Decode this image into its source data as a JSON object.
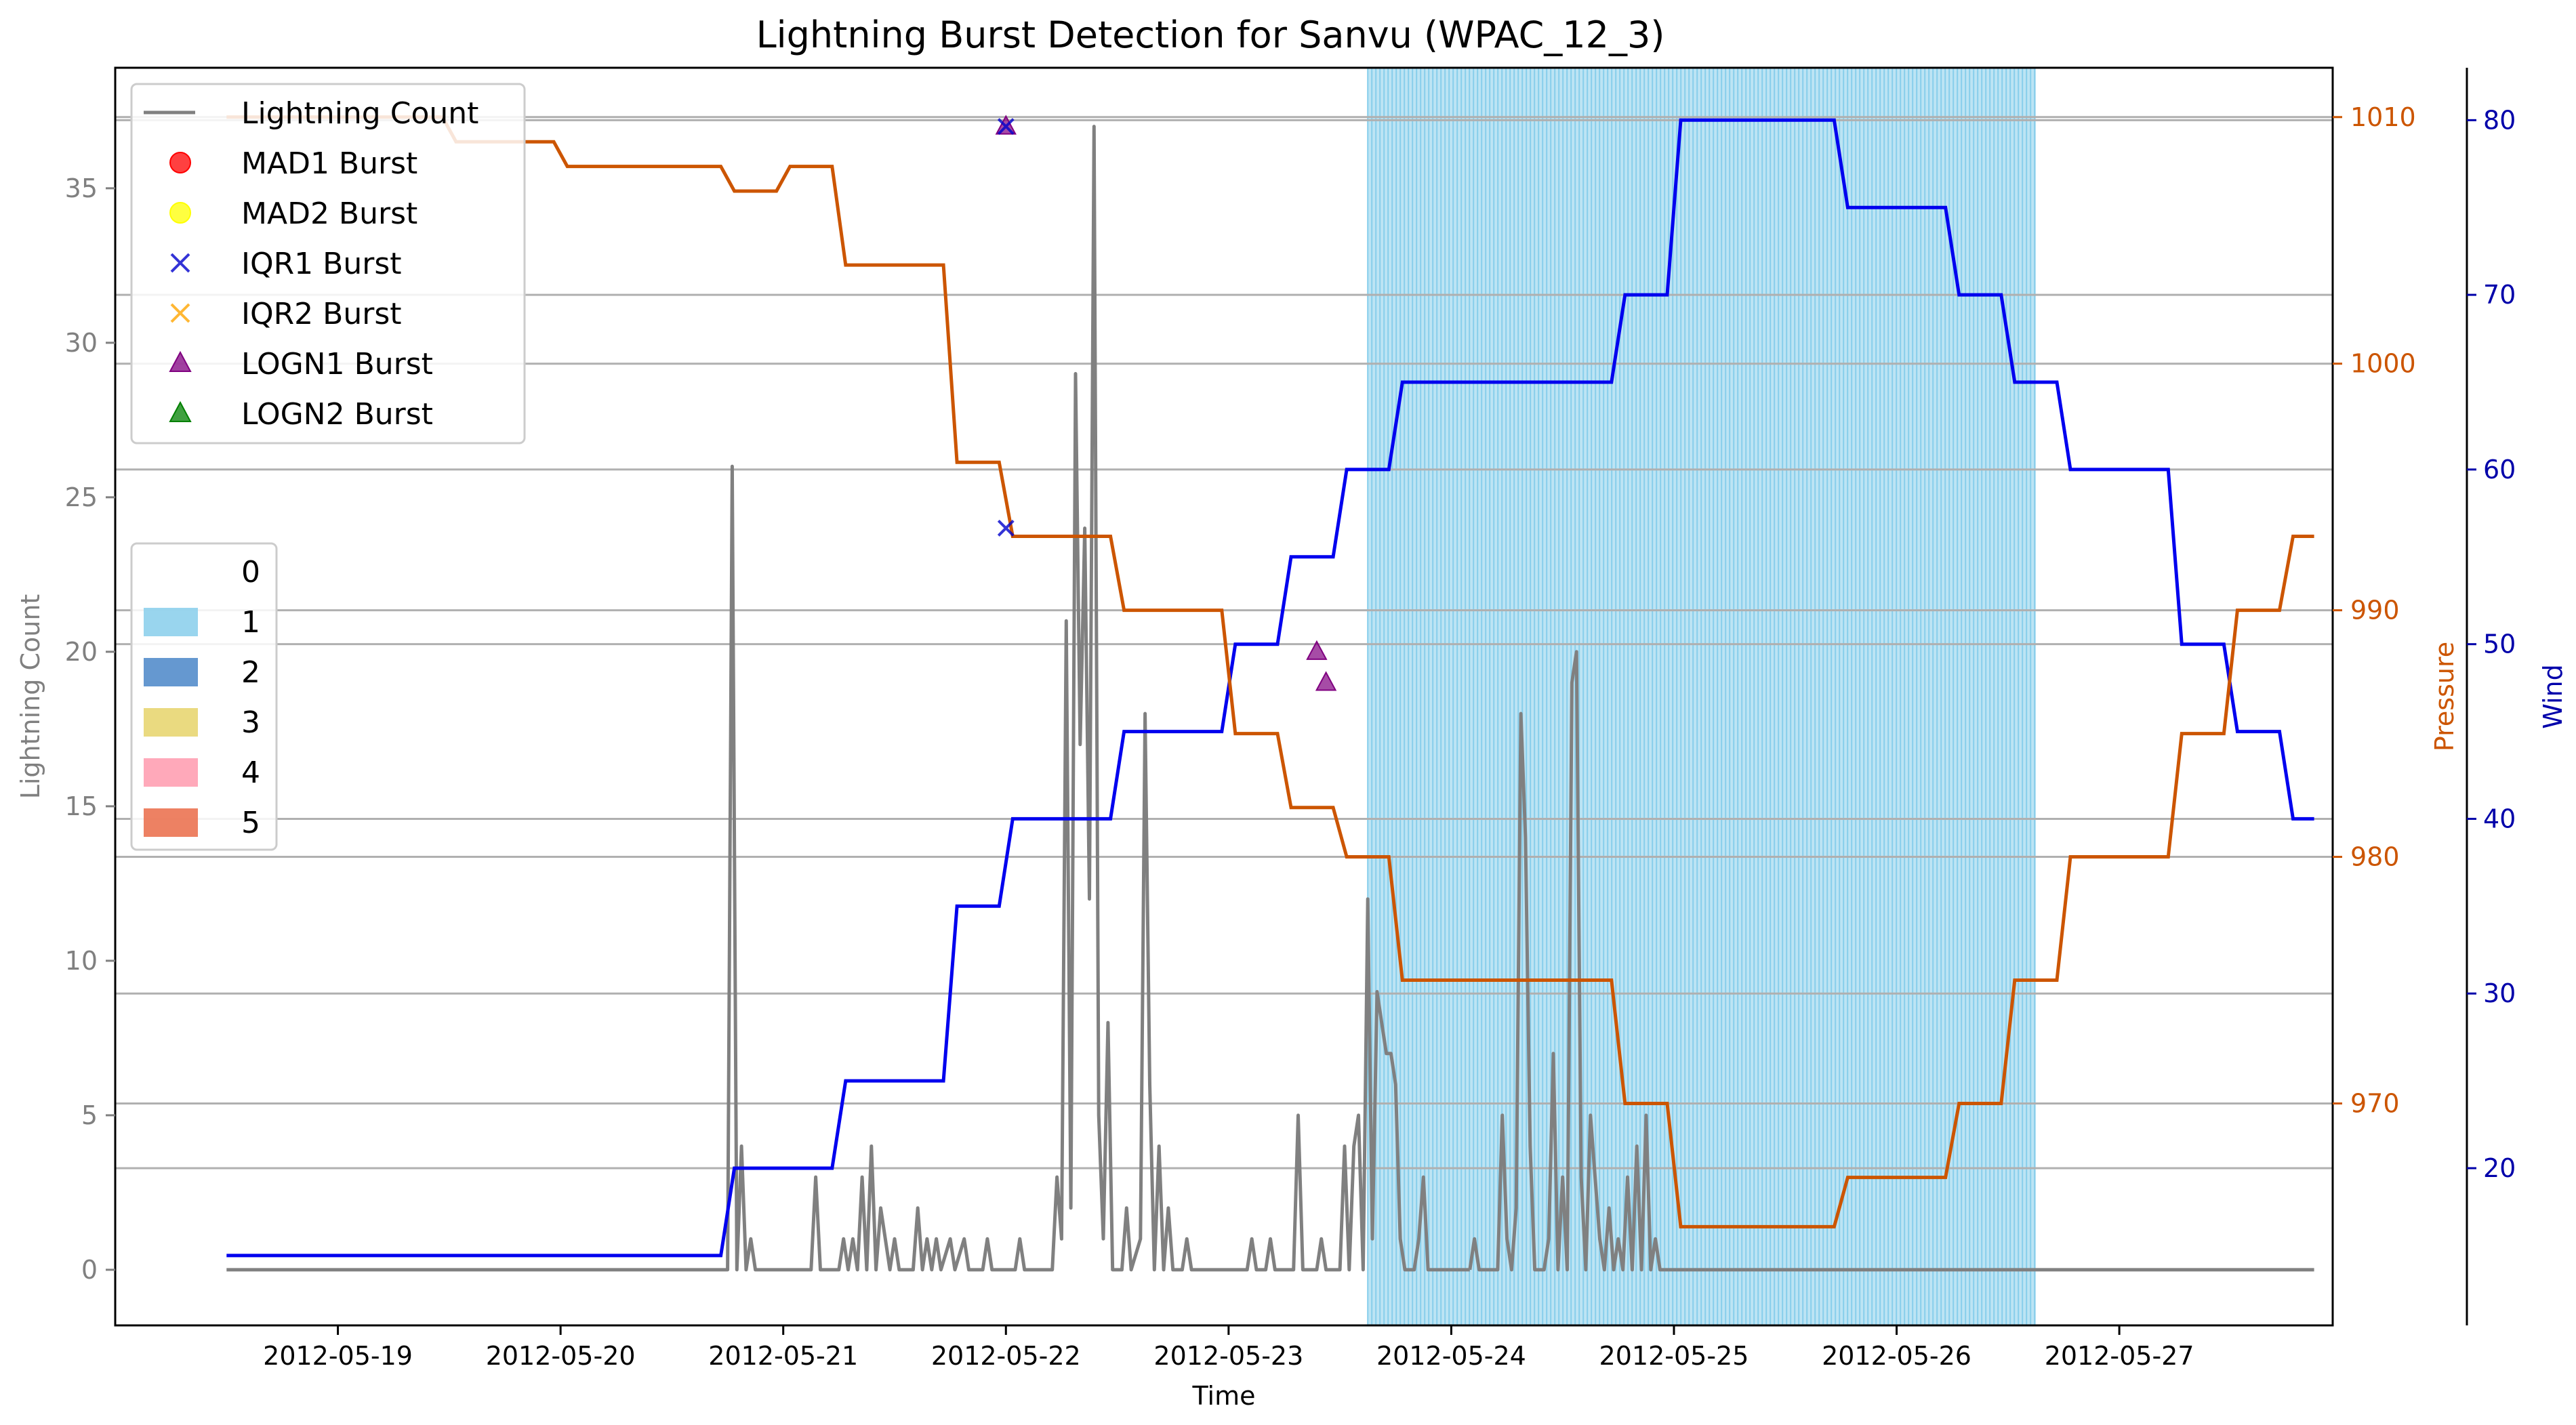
{
  "chart_data": {
    "type": "line",
    "title": "Lightning Burst Detection for Sanvu (WPAC_12_3)",
    "xlabel": "Time",
    "ylabel": "Lightning Count",
    "ylabel_pressure": "Pressure",
    "ylabel_wind": "Wind",
    "x_ticks": [
      "2012-05-19",
      "2012-05-20",
      "2012-05-21",
      "2012-05-22",
      "2012-05-23",
      "2012-05-24",
      "2012-05-25",
      "2012-05-26",
      "2012-05-27"
    ],
    "xlim": [
      "2012-05-18 00:00",
      "2012-05-27 23:00"
    ],
    "y_ticks": [
      "0",
      "5",
      "10",
      "15",
      "20",
      "25",
      "30",
      "35"
    ],
    "ylim": [
      -1.8,
      38.9
    ],
    "pressure_ticks": [
      "970",
      "980",
      "990",
      "1000",
      "1010"
    ],
    "pressure_lim": [
      961,
      1012
    ],
    "wind_ticks": [
      "20",
      "30",
      "40",
      "50",
      "60",
      "70",
      "80"
    ],
    "wind_lim": [
      11,
      83
    ],
    "grid": true,
    "colors": {
      "lightning": "#808080",
      "pressure": "#cc5500",
      "wind": "#0000ee",
      "span": "#87ceeb",
      "mad1": "#ff0000",
      "mad2": "#ffff00",
      "iqr1": "#0000cc",
      "iqr2": "#ffa500",
      "logn1": "#800080",
      "logn2": "#008000"
    },
    "legend_markers": {
      "placement": "upper-left",
      "entries": [
        {
          "label": "Lightning Count",
          "marker": "line",
          "color": "#808080"
        },
        {
          "label": "MAD1 Burst",
          "marker": "circle",
          "color": "#ff0000"
        },
        {
          "label": "MAD2 Burst",
          "marker": "circle",
          "color": "#ffff00"
        },
        {
          "label": "IQR1 Burst",
          "marker": "x",
          "color": "#0000cc"
        },
        {
          "label": "IQR2 Burst",
          "marker": "x",
          "color": "#ffa500"
        },
        {
          "label": "LOGN1 Burst",
          "marker": "triangle",
          "color": "#800080"
        },
        {
          "label": "LOGN2 Burst",
          "marker": "triangle",
          "color": "#008000"
        }
      ]
    },
    "legend_categories": {
      "placement": "center-left",
      "entries": [
        {
          "label": "0",
          "color": "#ffffff"
        },
        {
          "label": "1",
          "color": "#87ceeb"
        },
        {
          "label": "2",
          "color": "#4a86c8"
        },
        {
          "label": "3",
          "color": "#e6d46a"
        },
        {
          "label": "4",
          "color": "#ff9aae"
        },
        {
          "label": "5",
          "color": "#ea6b48"
        }
      ]
    },
    "category_span": {
      "category": "1",
      "start": "2012-05-23 15:00",
      "end": "2012-05-26 15:00"
    },
    "pressure_series": {
      "name": "Pressure",
      "points": [
        [
          "2012-05-18 12:00",
          1010
        ],
        [
          "2012-05-18 18:00",
          1010
        ],
        [
          "2012-05-19 06:00",
          1010
        ],
        [
          "2012-05-19 12:00",
          1009
        ],
        [
          "2012-05-19 18:00",
          1009
        ],
        [
          "2012-05-20 00:00",
          1008
        ],
        [
          "2012-05-20 06:00",
          1008
        ],
        [
          "2012-05-20 12:00",
          1008
        ],
        [
          "2012-05-20 18:00",
          1007
        ],
        [
          "2012-05-21 00:00",
          1008
        ],
        [
          "2012-05-21 06:00",
          1004
        ],
        [
          "2012-05-21 12:00",
          1004
        ],
        [
          "2012-05-21 18:00",
          996
        ],
        [
          "2012-05-22 00:00",
          993
        ],
        [
          "2012-05-22 06:00",
          993
        ],
        [
          "2012-05-22 12:00",
          990
        ],
        [
          "2012-05-22 18:00",
          990
        ],
        [
          "2012-05-23 00:00",
          985
        ],
        [
          "2012-05-23 06:00",
          982
        ],
        [
          "2012-05-23 12:00",
          980
        ],
        [
          "2012-05-23 18:00",
          975
        ],
        [
          "2012-05-24 00:00",
          975
        ],
        [
          "2012-05-24 06:00",
          975
        ],
        [
          "2012-05-24 12:00",
          975
        ],
        [
          "2012-05-24 18:00",
          970
        ],
        [
          "2012-05-25 00:00",
          965
        ],
        [
          "2012-05-25 06:00",
          965
        ],
        [
          "2012-05-25 12:00",
          965
        ],
        [
          "2012-05-25 18:00",
          967
        ],
        [
          "2012-05-26 00:00",
          967
        ],
        [
          "2012-05-26 06:00",
          970
        ],
        [
          "2012-05-26 12:00",
          975
        ],
        [
          "2012-05-26 18:00",
          980
        ],
        [
          "2012-05-27 00:00",
          980
        ],
        [
          "2012-05-27 06:00",
          985
        ],
        [
          "2012-05-27 12:00",
          990
        ],
        [
          "2012-05-27 18:00",
          993
        ]
      ]
    },
    "wind_series": {
      "name": "Wind",
      "points": [
        [
          "2012-05-18 12:00",
          15
        ],
        [
          "2012-05-18 18:00",
          15
        ],
        [
          "2012-05-19 06:00",
          15
        ],
        [
          "2012-05-19 12:00",
          15
        ],
        [
          "2012-05-19 18:00",
          15
        ],
        [
          "2012-05-20 00:00",
          15
        ],
        [
          "2012-05-20 06:00",
          15
        ],
        [
          "2012-05-20 12:00",
          15
        ],
        [
          "2012-05-20 18:00",
          20
        ],
        [
          "2012-05-21 00:00",
          20
        ],
        [
          "2012-05-21 06:00",
          25
        ],
        [
          "2012-05-21 12:00",
          25
        ],
        [
          "2012-05-21 18:00",
          35
        ],
        [
          "2012-05-22 00:00",
          40
        ],
        [
          "2012-05-22 06:00",
          40
        ],
        [
          "2012-05-22 12:00",
          45
        ],
        [
          "2012-05-22 18:00",
          45
        ],
        [
          "2012-05-23 00:00",
          50
        ],
        [
          "2012-05-23 06:00",
          55
        ],
        [
          "2012-05-23 12:00",
          60
        ],
        [
          "2012-05-23 18:00",
          65
        ],
        [
          "2012-05-24 00:00",
          65
        ],
        [
          "2012-05-24 06:00",
          65
        ],
        [
          "2012-05-24 12:00",
          65
        ],
        [
          "2012-05-24 18:00",
          70
        ],
        [
          "2012-05-25 00:00",
          80
        ],
        [
          "2012-05-25 06:00",
          80
        ],
        [
          "2012-05-25 12:00",
          80
        ],
        [
          "2012-05-25 18:00",
          75
        ],
        [
          "2012-05-26 00:00",
          75
        ],
        [
          "2012-05-26 06:00",
          70
        ],
        [
          "2012-05-26 12:00",
          65
        ],
        [
          "2012-05-26 18:00",
          60
        ],
        [
          "2012-05-27 00:00",
          60
        ],
        [
          "2012-05-27 06:00",
          50
        ],
        [
          "2012-05-27 12:00",
          45
        ],
        [
          "2012-05-27 18:00",
          40
        ]
      ]
    },
    "lightning_series": {
      "name": "Lightning Count",
      "points": [
        [
          "2012-05-18 12:00",
          0
        ],
        [
          "2012-05-20 18:00",
          0
        ],
        [
          "2012-05-20 18:30",
          26
        ],
        [
          "2012-05-20 19:00",
          0
        ],
        [
          "2012-05-20 19:30",
          4
        ],
        [
          "2012-05-20 20:00",
          0
        ],
        [
          "2012-05-20 20:30",
          1
        ],
        [
          "2012-05-20 21:00",
          0
        ],
        [
          "2012-05-21 03:00",
          0
        ],
        [
          "2012-05-21 03:30",
          3
        ],
        [
          "2012-05-21 04:00",
          0
        ],
        [
          "2012-05-21 06:00",
          0
        ],
        [
          "2012-05-21 06:30",
          1
        ],
        [
          "2012-05-21 07:00",
          0
        ],
        [
          "2012-05-21 07:30",
          1
        ],
        [
          "2012-05-21 08:00",
          0
        ],
        [
          "2012-05-21 08:30",
          3
        ],
        [
          "2012-05-21 09:00",
          0
        ],
        [
          "2012-05-21 09:30",
          4
        ],
        [
          "2012-05-21 10:00",
          0
        ],
        [
          "2012-05-21 10:30",
          2
        ],
        [
          "2012-05-21 11:00",
          1
        ],
        [
          "2012-05-21 11:30",
          0
        ],
        [
          "2012-05-21 12:00",
          1
        ],
        [
          "2012-05-21 12:30",
          0
        ],
        [
          "2012-05-21 14:00",
          0
        ],
        [
          "2012-05-21 14:30",
          2
        ],
        [
          "2012-05-21 15:00",
          0
        ],
        [
          "2012-05-21 15:30",
          1
        ],
        [
          "2012-05-21 16:00",
          0
        ],
        [
          "2012-05-21 16:30",
          1
        ],
        [
          "2012-05-21 17:00",
          0
        ],
        [
          "2012-05-21 18:00",
          1
        ],
        [
          "2012-05-21 18:30",
          0
        ],
        [
          "2012-05-21 19:30",
          1
        ],
        [
          "2012-05-21 20:00",
          0
        ],
        [
          "2012-05-21 21:30",
          0
        ],
        [
          "2012-05-21 22:00",
          1
        ],
        [
          "2012-05-21 22:30",
          0
        ],
        [
          "2012-05-22 01:00",
          0
        ],
        [
          "2012-05-22 01:30",
          1
        ],
        [
          "2012-05-22 02:00",
          0
        ],
        [
          "2012-05-22 05:00",
          0
        ],
        [
          "2012-05-22 05:30",
          3
        ],
        [
          "2012-05-22 06:00",
          1
        ],
        [
          "2012-05-22 06:30",
          21
        ],
        [
          "2012-05-22 07:00",
          2
        ],
        [
          "2012-05-22 07:30",
          29
        ],
        [
          "2012-05-22 08:00",
          17
        ],
        [
          "2012-05-22 08:30",
          24
        ],
        [
          "2012-05-22 09:00",
          12
        ],
        [
          "2012-05-22 09:30",
          37
        ],
        [
          "2012-05-22 10:00",
          5
        ],
        [
          "2012-05-22 10:30",
          1
        ],
        [
          "2012-05-22 11:00",
          8
        ],
        [
          "2012-05-22 11:30",
          0
        ],
        [
          "2012-05-22 12:30",
          0
        ],
        [
          "2012-05-22 13:00",
          2
        ],
        [
          "2012-05-22 13:30",
          0
        ],
        [
          "2012-05-22 14:30",
          1
        ],
        [
          "2012-05-22 15:00",
          18
        ],
        [
          "2012-05-22 15:30",
          6
        ],
        [
          "2012-05-22 16:00",
          0
        ],
        [
          "2012-05-22 16:30",
          4
        ],
        [
          "2012-05-22 17:00",
          0
        ],
        [
          "2012-05-22 17:30",
          2
        ],
        [
          "2012-05-22 18:00",
          0
        ],
        [
          "2012-05-22 19:00",
          0
        ],
        [
          "2012-05-22 19:30",
          1
        ],
        [
          "2012-05-22 20:00",
          0
        ],
        [
          "2012-05-23 02:00",
          0
        ],
        [
          "2012-05-23 02:30",
          1
        ],
        [
          "2012-05-23 03:00",
          0
        ],
        [
          "2012-05-23 04:00",
          0
        ],
        [
          "2012-05-23 04:30",
          1
        ],
        [
          "2012-05-23 05:00",
          0
        ],
        [
          "2012-05-23 07:00",
          0
        ],
        [
          "2012-05-23 07:30",
          5
        ],
        [
          "2012-05-23 08:00",
          0
        ],
        [
          "2012-05-23 09:30",
          0
        ],
        [
          "2012-05-23 10:00",
          1
        ],
        [
          "2012-05-23 10:30",
          0
        ],
        [
          "2012-05-23 12:00",
          0
        ],
        [
          "2012-05-23 12:30",
          4
        ],
        [
          "2012-05-23 13:00",
          0
        ],
        [
          "2012-05-23 13:30",
          4
        ],
        [
          "2012-05-23 14:00",
          5
        ],
        [
          "2012-05-23 14:30",
          0
        ],
        [
          "2012-05-23 15:00",
          12
        ],
        [
          "2012-05-23 15:30",
          1
        ],
        [
          "2012-05-23 16:00",
          9
        ],
        [
          "2012-05-23 16:30",
          8
        ],
        [
          "2012-05-23 17:00",
          7
        ],
        [
          "2012-05-23 17:30",
          7
        ],
        [
          "2012-05-23 18:00",
          6
        ],
        [
          "2012-05-23 18:30",
          1
        ],
        [
          "2012-05-23 19:00",
          0
        ],
        [
          "2012-05-23 20:00",
          0
        ],
        [
          "2012-05-23 20:30",
          1
        ],
        [
          "2012-05-23 21:00",
          3
        ],
        [
          "2012-05-23 21:30",
          0
        ]
      ]
    },
    "lightning_series_2": {
      "name": "Lightning Count",
      "points": [
        [
          "2012-05-24 02:00",
          0
        ],
        [
          "2012-05-24 02:30",
          1
        ],
        [
          "2012-05-24 03:00",
          0
        ],
        [
          "2012-05-24 05:00",
          0
        ],
        [
          "2012-05-24 05:30",
          5
        ],
        [
          "2012-05-24 06:00",
          1
        ],
        [
          "2012-05-24 06:30",
          0
        ],
        [
          "2012-05-24 07:00",
          2
        ],
        [
          "2012-05-24 07:30",
          18
        ],
        [
          "2012-05-24 08:00",
          14
        ],
        [
          "2012-05-24 08:30",
          4
        ],
        [
          "2012-05-24 09:00",
          0
        ],
        [
          "2012-05-24 10:00",
          0
        ],
        [
          "2012-05-24 10:30",
          1
        ],
        [
          "2012-05-24 11:00",
          7
        ],
        [
          "2012-05-24 11:30",
          0
        ],
        [
          "2012-05-24 12:00",
          3
        ],
        [
          "2012-05-24 12:30",
          0
        ],
        [
          "2012-05-24 13:00",
          19
        ],
        [
          "2012-05-24 13:30",
          20
        ],
        [
          "2012-05-24 14:00",
          3
        ],
        [
          "2012-05-24 14:30",
          0
        ],
        [
          "2012-05-24 15:00",
          5
        ],
        [
          "2012-05-24 15:30",
          3
        ],
        [
          "2012-05-24 16:00",
          1
        ],
        [
          "2012-05-24 16:30",
          0
        ],
        [
          "2012-05-24 17:00",
          2
        ],
        [
          "2012-05-24 17:30",
          0
        ],
        [
          "2012-05-24 18:00",
          1
        ],
        [
          "2012-05-24 18:30",
          0
        ],
        [
          "2012-05-24 19:00",
          3
        ],
        [
          "2012-05-24 19:30",
          0
        ],
        [
          "2012-05-24 20:00",
          4
        ],
        [
          "2012-05-24 20:30",
          0
        ],
        [
          "2012-05-24 21:00",
          5
        ],
        [
          "2012-05-24 21:30",
          0
        ],
        [
          "2012-05-24 22:00",
          1
        ],
        [
          "2012-05-24 22:30",
          0
        ]
      ]
    },
    "bursts": {
      "iqr1": [
        [
          "2012-05-22 00:00",
          37
        ],
        [
          "2012-05-22 00:00",
          24
        ]
      ],
      "logn1": [
        [
          "2012-05-22 00:00",
          37
        ],
        [
          "2012-05-23 09:30",
          20
        ],
        [
          "2012-05-23 10:30",
          19
        ]
      ]
    }
  }
}
